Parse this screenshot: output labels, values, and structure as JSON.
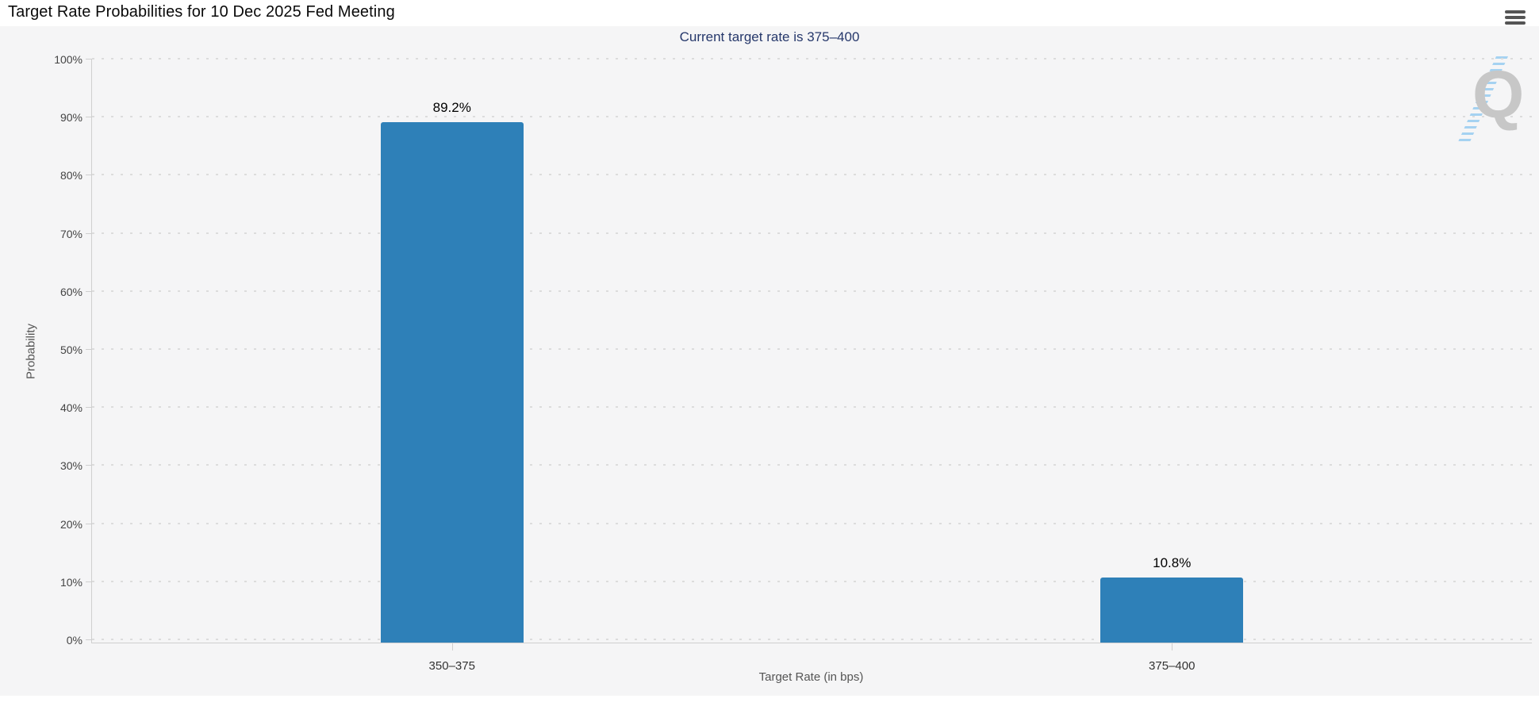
{
  "header": {
    "title": "Target Rate Probabilities for 10 Dec 2025 Fed Meeting"
  },
  "icons": {
    "menu": "hamburger-menu-icon"
  },
  "watermark": {
    "letter": "Q"
  },
  "chart_data": {
    "type": "bar",
    "title": "Target Rate Probabilities for 10 Dec 2025 Fed Meeting",
    "subtitle": "Current target rate is 375–400",
    "categories": [
      "350–375",
      "375–400"
    ],
    "values": [
      89.2,
      10.8
    ],
    "value_labels": [
      "89.2%",
      "10.8%"
    ],
    "xlabel": "Target Rate (in bps)",
    "ylabel": "Probability",
    "ylim": [
      0,
      100
    ],
    "ytick_step": 10,
    "yticks": [
      "0%",
      "10%",
      "20%",
      "30%",
      "40%",
      "50%",
      "60%",
      "70%",
      "80%",
      "90%",
      "100%"
    ],
    "grid": "horizontal dotted",
    "legend": "none",
    "bar_color": "#2e80b8",
    "subtitle_color": "#26386b",
    "background_color": "#f5f5f6"
  }
}
